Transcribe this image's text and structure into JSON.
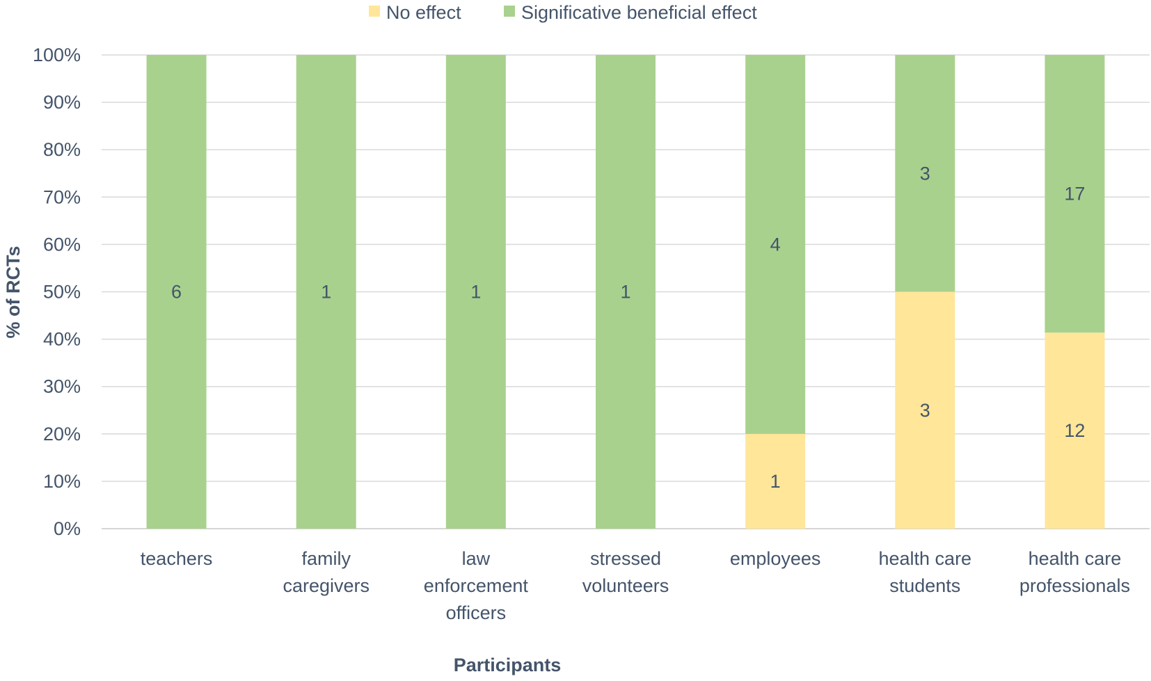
{
  "chart_data": {
    "type": "bar",
    "stacked": "percent",
    "xlabel": "Participants",
    "ylabel": "% of RCTs",
    "ylim": [
      0,
      100
    ],
    "yticks": [
      "0%",
      "10%",
      "20%",
      "30%",
      "40%",
      "50%",
      "60%",
      "70%",
      "80%",
      "90%",
      "100%"
    ],
    "grid": true,
    "legend_position": "top-center",
    "categories": [
      [
        "teachers"
      ],
      [
        "family",
        "caregivers"
      ],
      [
        "law",
        "enforcement",
        "officers"
      ],
      [
        "stressed",
        "volunteers"
      ],
      [
        "employees"
      ],
      [
        "health care",
        "students"
      ],
      [
        "health care",
        "professionals"
      ]
    ],
    "series": [
      {
        "name": "No effect",
        "color": "#ffe699",
        "values": [
          0,
          0,
          0,
          0,
          1,
          3,
          12
        ]
      },
      {
        "name": "Significative beneficial effect",
        "color": "#a9d18e",
        "values": [
          6,
          1,
          1,
          1,
          4,
          3,
          17
        ]
      }
    ]
  }
}
